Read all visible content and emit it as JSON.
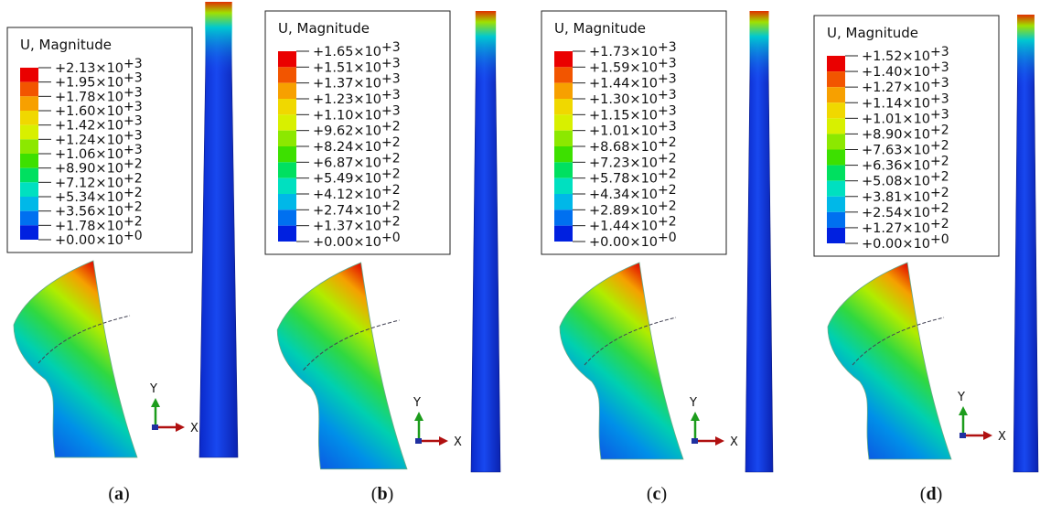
{
  "panels": [
    {
      "legend_title": "U, Magnitude",
      "labels": [
        {
          "base": "+2.13×10",
          "exp": "+3"
        },
        {
          "base": "+1.95×10",
          "exp": "+3"
        },
        {
          "base": "+1.78×10",
          "exp": "+3"
        },
        {
          "base": "+1.60×10",
          "exp": "+3"
        },
        {
          "base": "+1.42×10",
          "exp": "+3"
        },
        {
          "base": "+1.24×10",
          "exp": "+3"
        },
        {
          "base": "+1.06×10",
          "exp": "+3"
        },
        {
          "base": "+8.90×10",
          "exp": "+2"
        },
        {
          "base": "+7.12×10",
          "exp": "+2"
        },
        {
          "base": "+5.34×10",
          "exp": "+2"
        },
        {
          "base": "+3.56×10",
          "exp": "+2"
        },
        {
          "base": "+1.78×10",
          "exp": "+2"
        },
        {
          "base": "+0.00×10",
          "exp": "+0"
        }
      ],
      "axis_y": "Y",
      "axis_x": "X",
      "caption": {
        "open": "(",
        "letter": "a",
        "close": ")"
      }
    },
    {
      "legend_title": "U, Magnitude",
      "labels": [
        {
          "base": "+1.65×10",
          "exp": "+3"
        },
        {
          "base": "+1.51×10",
          "exp": "+3"
        },
        {
          "base": "+1.37×10",
          "exp": "+3"
        },
        {
          "base": "+1.23×10",
          "exp": "+3"
        },
        {
          "base": "+1.10×10",
          "exp": "+3"
        },
        {
          "base": "+9.62×10",
          "exp": "+2"
        },
        {
          "base": "+8.24×10",
          "exp": "+2"
        },
        {
          "base": "+6.87×10",
          "exp": "+2"
        },
        {
          "base": "+5.49×10",
          "exp": "+2"
        },
        {
          "base": "+4.12×10",
          "exp": "+2"
        },
        {
          "base": "+2.74×10",
          "exp": "+2"
        },
        {
          "base": "+1.37×10",
          "exp": "+2"
        },
        {
          "base": "+0.00×10",
          "exp": "+0"
        }
      ],
      "axis_y": "Y",
      "axis_x": "X",
      "caption": {
        "open": "(",
        "letter": "b",
        "close": ")"
      }
    },
    {
      "legend_title": "U, Magnitude",
      "labels": [
        {
          "base": "+1.73×10",
          "exp": "+3"
        },
        {
          "base": "+1.59×10",
          "exp": "+3"
        },
        {
          "base": "+1.44×10",
          "exp": "+3"
        },
        {
          "base": "+1.30×10",
          "exp": "+3"
        },
        {
          "base": "+1.15×10",
          "exp": "+3"
        },
        {
          "base": "+1.01×10",
          "exp": "+3"
        },
        {
          "base": "+8.68×10",
          "exp": "+2"
        },
        {
          "base": "+7.23×10",
          "exp": "+2"
        },
        {
          "base": "+5.78×10",
          "exp": "+2"
        },
        {
          "base": "+4.34×10",
          "exp": "+2"
        },
        {
          "base": "+2.89×10",
          "exp": "+2"
        },
        {
          "base": "+1.44×10",
          "exp": "+2"
        },
        {
          "base": "+0.00×10",
          "exp": "+0"
        }
      ],
      "axis_y": "Y",
      "axis_x": "X",
      "caption": {
        "open": "(",
        "letter": "c",
        "close": ")"
      }
    },
    {
      "legend_title": "U, Magnitude",
      "labels": [
        {
          "base": "+1.52×10",
          "exp": "+3"
        },
        {
          "base": "+1.40×10",
          "exp": "+3"
        },
        {
          "base": "+1.27×10",
          "exp": "+3"
        },
        {
          "base": "+1.14×10",
          "exp": "+3"
        },
        {
          "base": "+1.01×10",
          "exp": "+3"
        },
        {
          "base": "+8.90×10",
          "exp": "+2"
        },
        {
          "base": "+7.63×10",
          "exp": "+2"
        },
        {
          "base": "+6.36×10",
          "exp": "+2"
        },
        {
          "base": "+5.08×10",
          "exp": "+2"
        },
        {
          "base": "+3.81×10",
          "exp": "+2"
        },
        {
          "base": "+2.54×10",
          "exp": "+2"
        },
        {
          "base": "+1.27×10",
          "exp": "+2"
        },
        {
          "base": "+0.00×10",
          "exp": "+0"
        }
      ],
      "axis_y": "Y",
      "axis_x": "X",
      "caption": {
        "open": "(",
        "letter": "d",
        "close": ")"
      }
    }
  ]
}
